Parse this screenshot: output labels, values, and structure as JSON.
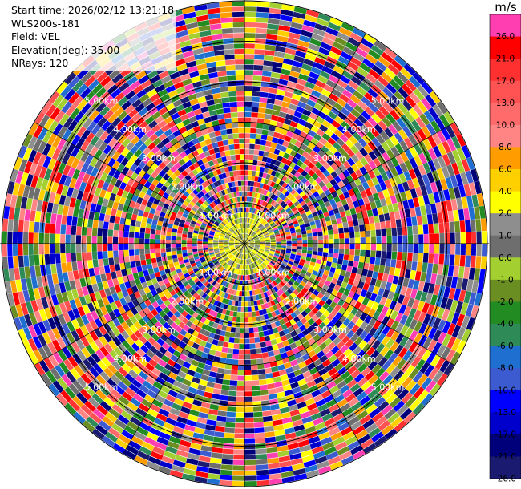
{
  "info": {
    "start_time": "Start time: 2026/02/12 13:21:18",
    "instrument": "WLS200s-181",
    "field": "Field: VEL",
    "elevation": "Elevation(deg): 35.00",
    "nrays": "NRays: 120"
  },
  "colorbar": {
    "unit": "m/s",
    "levels": [
      "26.0",
      "21.0",
      "17.0",
      "13.0",
      "10.0",
      "8.0",
      "6.0",
      "4.0",
      "2.0",
      "1.0",
      "0.0",
      "-1.0",
      "-2.0",
      "-4.0",
      "-6.0",
      "-8.0",
      "-10.0",
      "-13.0",
      "-17.0",
      "-21.0",
      "-26.0",
      "-30.0"
    ],
    "colors": [
      "#ff3fb1",
      "#ff0000",
      "#ff3030",
      "#ff5252",
      "#ff6a6a",
      "#ff8585",
      "#ff9d00",
      "#ffd000",
      "#ffff00",
      "#8e8e8e",
      "#6e6e6e",
      "#a4cf30",
      "#6b8e23",
      "#228b22",
      "#2e8b57",
      "#1e6fd0",
      "#3d5bd0",
      "#0000ff",
      "#0000cd",
      "#00007a",
      "#1a1a70"
    ]
  },
  "chart_data": {
    "type": "heatmap",
    "subtype": "ppi-polar",
    "field": "VEL",
    "rays": 120,
    "range_max_km": 6.0,
    "range_rings_km": [
      1.0,
      2.0,
      3.0,
      4.0,
      5.0,
      6.0
    ],
    "range_labels": [
      "1.00km",
      "2.00km",
      "3.00km",
      "4.00km",
      "5.00km"
    ],
    "colorscale_min": -30.0,
    "colorscale_max": 26.0,
    "grid": true
  }
}
